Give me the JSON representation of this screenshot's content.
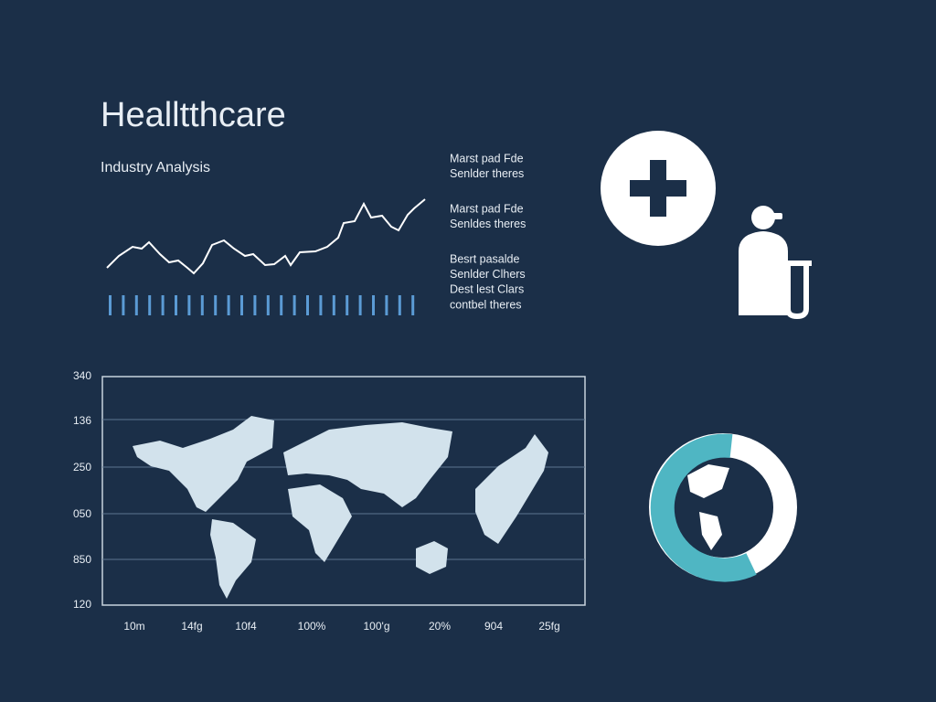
{
  "header": {
    "title": "Healltthcare",
    "subtitle": "Industry Analysis"
  },
  "notes": [
    [
      "Marst pad Fde",
      "Senlder theres"
    ],
    [
      "Marst pad Fde",
      "Senldes theres"
    ],
    [
      "Besrt pasalde",
      "Senlder Clhers",
      "Dest lest Clars",
      "contbel theres"
    ]
  ],
  "map_panel": {
    "y_labels": [
      "340",
      "136",
      "250",
      "050",
      "850",
      "120"
    ],
    "x_labels": [
      "10m",
      "14fg",
      "10f4",
      "100%",
      "100'g",
      "20%",
      "904",
      "25fg"
    ]
  }
}
